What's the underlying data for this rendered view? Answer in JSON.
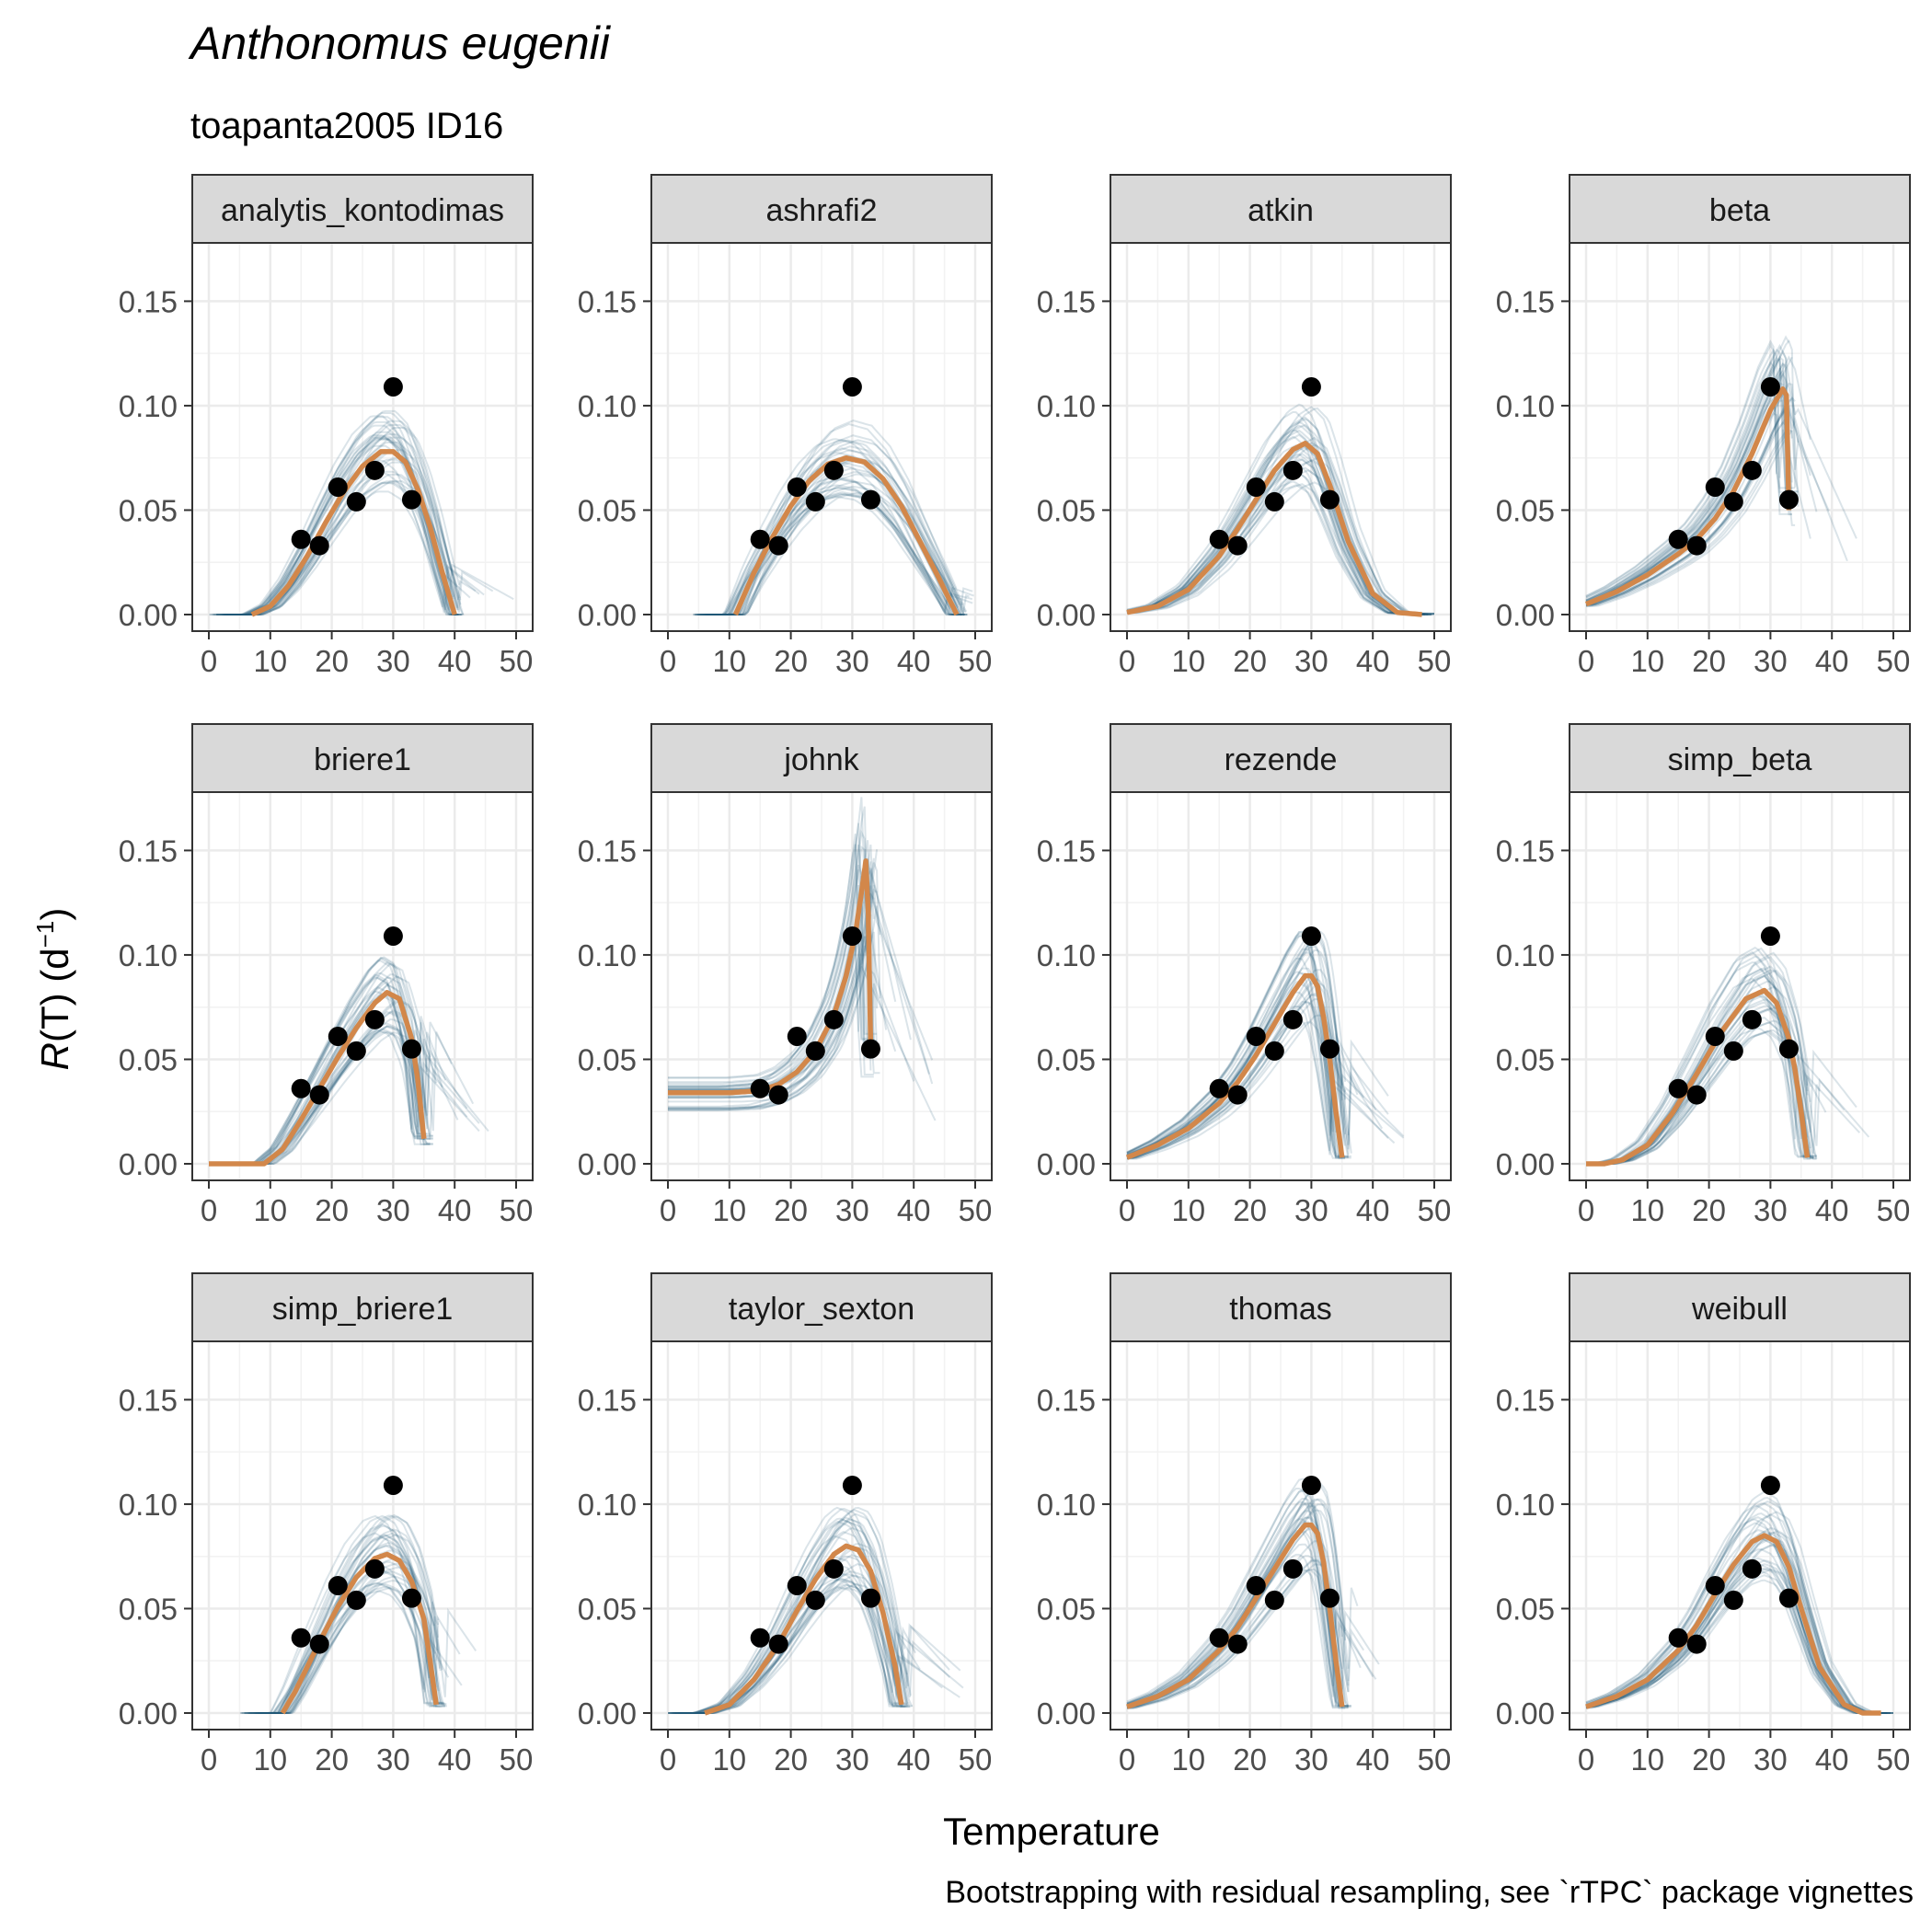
{
  "title": "Anthonomus eugenii",
  "subtitle": "toapanta2005 ID16",
  "xlabel": "Temperature",
  "ylabel_main": "R",
  "ylabel_rest": "(T) (d",
  "ylabel_sup": "−1",
  "ylabel_close": ")",
  "caption": "Bootstrapping with residual resampling, see `rTPC` package vignettes",
  "colors": {
    "fit": "#D2874A",
    "bootstrap": "#1F5A78",
    "points": "#000000",
    "strip_fill": "#D9D9D9",
    "grid": "#EBEBEB"
  },
  "chart_data": {
    "type": "line",
    "facet_layout": "4 columns x 3 rows",
    "xlim": [
      0,
      50
    ],
    "ylim": [
      0,
      0.17
    ],
    "x_ticks": [
      "0",
      "10",
      "20",
      "30",
      "40",
      "50"
    ],
    "y_ticks": [
      "0.00",
      "0.05",
      "0.10",
      "0.15"
    ],
    "x_tick_values": [
      0,
      10,
      20,
      30,
      40,
      50
    ],
    "y_tick_values": [
      0,
      0.05,
      0.1,
      0.15
    ],
    "grid": true,
    "observations": {
      "temperature": [
        15,
        18,
        21,
        24,
        27,
        30,
        33
      ],
      "rate": [
        0.036,
        0.033,
        0.061,
        0.054,
        0.069,
        0.109,
        0.055
      ]
    },
    "panels": [
      {
        "name": "analytis_kontodimas",
        "fit": {
          "x": [
            7,
            10,
            13,
            16,
            19,
            22,
            25,
            28,
            30,
            32,
            34,
            36,
            38,
            40
          ],
          "y": [
            0,
            0.004,
            0.014,
            0.028,
            0.044,
            0.059,
            0.071,
            0.078,
            0.078,
            0.073,
            0.06,
            0.042,
            0.02,
            0
          ]
        }
      },
      {
        "name": "ashrafi2",
        "fit": {
          "x": [
            11,
            14,
            17,
            20,
            23,
            26,
            29,
            32,
            35,
            38,
            41,
            44,
            47
          ],
          "y": [
            0,
            0.02,
            0.037,
            0.052,
            0.064,
            0.072,
            0.075,
            0.073,
            0.065,
            0.052,
            0.035,
            0.018,
            0
          ]
        }
      },
      {
        "name": "atkin",
        "fit": {
          "x": [
            0,
            5,
            10,
            15,
            18,
            21,
            24,
            27,
            29,
            31,
            33,
            36,
            40,
            44,
            48
          ],
          "y": [
            0.001,
            0.004,
            0.012,
            0.028,
            0.041,
            0.055,
            0.069,
            0.079,
            0.082,
            0.077,
            0.062,
            0.035,
            0.01,
            0.001,
            0
          ]
        }
      },
      {
        "name": "beta",
        "fit": {
          "x": [
            0,
            5,
            10,
            15,
            18,
            21,
            24,
            27,
            30,
            32,
            32.6,
            33
          ],
          "y": [
            0.005,
            0.011,
            0.019,
            0.029,
            0.036,
            0.046,
            0.059,
            0.077,
            0.098,
            0.108,
            0.105,
            0.05
          ]
        }
      },
      {
        "name": "briere1",
        "fit": {
          "x": [
            0,
            5,
            9,
            12,
            15,
            18,
            21,
            24,
            27,
            29,
            31,
            33,
            34,
            35
          ],
          "y": [
            0,
            0,
            0,
            0.007,
            0.021,
            0.036,
            0.051,
            0.065,
            0.077,
            0.082,
            0.079,
            0.06,
            0.04,
            0.012
          ]
        }
      },
      {
        "name": "johnk",
        "fit": {
          "x": [
            0,
            5,
            10,
            15,
            18,
            21,
            24,
            27,
            29,
            30.5,
            31.5,
            32.2,
            32.6,
            33
          ],
          "y": [
            0.034,
            0.034,
            0.034,
            0.035,
            0.038,
            0.044,
            0.054,
            0.071,
            0.09,
            0.11,
            0.13,
            0.145,
            0.12,
            0.055
          ]
        }
      },
      {
        "name": "rezende",
        "fit": {
          "x": [
            0,
            5,
            10,
            15,
            18,
            21,
            24,
            27,
            29,
            30,
            31,
            32,
            33,
            34,
            35
          ],
          "y": [
            0.003,
            0.009,
            0.017,
            0.029,
            0.039,
            0.052,
            0.067,
            0.082,
            0.09,
            0.09,
            0.085,
            0.07,
            0.05,
            0.025,
            0.003
          ]
        }
      },
      {
        "name": "simp_beta",
        "fit": {
          "x": [
            0,
            3,
            6,
            10,
            14,
            18,
            22,
            26,
            29,
            31,
            33,
            34,
            35,
            36
          ],
          "y": [
            0,
            0,
            0.002,
            0.009,
            0.024,
            0.043,
            0.063,
            0.079,
            0.083,
            0.077,
            0.06,
            0.045,
            0.025,
            0.003
          ]
        }
      },
      {
        "name": "simp_briere1",
        "fit": {
          "x": [
            12,
            14,
            16,
            18,
            21,
            24,
            27,
            29,
            31,
            33,
            35,
            36,
            37
          ],
          "y": [
            0,
            0.01,
            0.022,
            0.034,
            0.051,
            0.065,
            0.074,
            0.076,
            0.073,
            0.063,
            0.045,
            0.025,
            0.004
          ]
        }
      },
      {
        "name": "taylor_sexton",
        "fit": {
          "x": [
            6,
            10,
            14,
            18,
            21,
            24,
            27,
            29,
            31,
            33,
            35,
            37,
            38
          ],
          "y": [
            0,
            0.004,
            0.016,
            0.033,
            0.049,
            0.064,
            0.076,
            0.08,
            0.078,
            0.068,
            0.048,
            0.022,
            0.004
          ]
        }
      },
      {
        "name": "thomas",
        "fit": {
          "x": [
            0,
            5,
            10,
            15,
            18,
            21,
            24,
            27,
            29,
            30,
            31,
            32,
            33,
            34,
            35
          ],
          "y": [
            0.003,
            0.008,
            0.016,
            0.03,
            0.041,
            0.055,
            0.069,
            0.083,
            0.09,
            0.09,
            0.086,
            0.072,
            0.05,
            0.025,
            0.003
          ]
        }
      },
      {
        "name": "weibull",
        "fit": {
          "x": [
            0,
            5,
            10,
            15,
            18,
            21,
            24,
            27,
            29,
            31,
            33,
            35,
            38,
            42,
            45,
            48
          ],
          "y": [
            0.003,
            0.008,
            0.016,
            0.03,
            0.042,
            0.057,
            0.071,
            0.082,
            0.085,
            0.082,
            0.07,
            0.05,
            0.022,
            0.004,
            0,
            0
          ]
        }
      }
    ]
  }
}
